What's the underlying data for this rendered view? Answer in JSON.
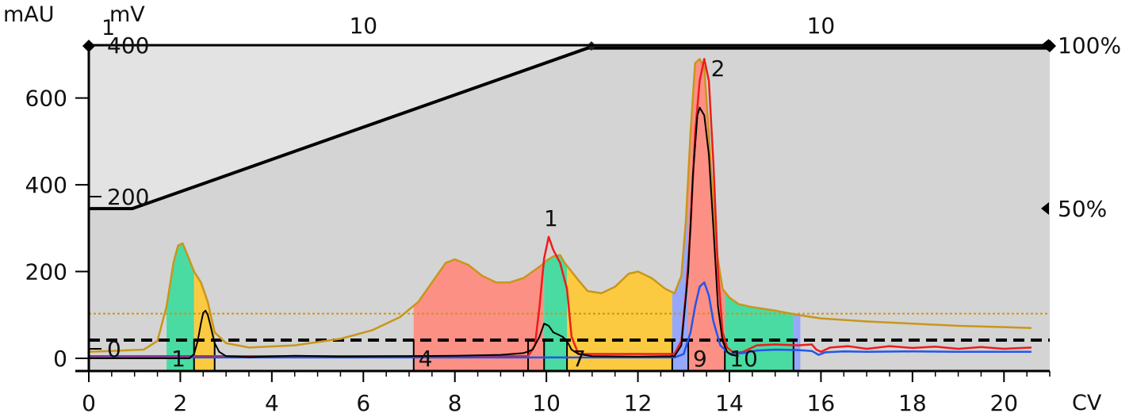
{
  "chart_data": {
    "type": "line",
    "title": "",
    "colors": {
      "plot_bg": "#d4d4d4",
      "gradient_fill": "#e3e3e3",
      "fraction_green": "#3ddb9d",
      "fraction_yellow": "#ffc933",
      "fraction_red": "#ff8a7d",
      "fraction_blue": "#8fa4ff",
      "gold_trace": "#c9961a",
      "red_trace": "#ee1c1c",
      "blue_trace": "#2255ee",
      "black_trace": "#000000"
    },
    "axes": {
      "x": {
        "label": "CV",
        "range": [
          0,
          21
        ],
        "ticks": [
          "0",
          "2",
          "4",
          "6",
          "8",
          "10",
          "12",
          "14",
          "16",
          "18",
          "20"
        ]
      },
      "y_left": {
        "label": "mAU",
        "range": [
          -30,
          730
        ],
        "ticks": [
          "0",
          "200",
          "400",
          "600"
        ]
      },
      "y_left2": {
        "label": "mV",
        "ticks": [
          "0",
          "200",
          "400"
        ]
      },
      "y_right": {
        "ticks": [
          "50%",
          "100%"
        ]
      },
      "grid": false
    },
    "top_labels": {
      "first": "1",
      "segments": [
        {
          "text": "10",
          "x": 6
        },
        {
          "text": "10",
          "x": 16
        }
      ]
    },
    "gradient": [
      [
        0,
        345
      ],
      [
        0.95,
        345
      ],
      [
        10.9,
        715
      ],
      [
        21,
        715
      ]
    ],
    "thresholds": [
      {
        "name": "gold dotted",
        "y": 103,
        "style": "dotted"
      },
      {
        "name": "black dashed",
        "y": 42,
        "style": "dashed"
      }
    ],
    "fractions": [
      {
        "label": "1",
        "start": 1.7,
        "end": 2.3,
        "color": "green"
      },
      {
        "label": "",
        "start": 2.3,
        "end": 2.75,
        "color": "yellow"
      },
      {
        "label": "4",
        "start": 7.1,
        "end": 9.6,
        "color": "red"
      },
      {
        "label": "",
        "start": 9.6,
        "end": 9.95,
        "color": "red"
      },
      {
        "label": "",
        "start": 9.95,
        "end": 10.45,
        "color": "green"
      },
      {
        "label": "7",
        "start": 10.45,
        "end": 12.75,
        "color": "yellow"
      },
      {
        "label": "",
        "start": 12.75,
        "end": 13.1,
        "color": "blue"
      },
      {
        "label": "9",
        "start": 13.1,
        "end": 13.9,
        "color": "red"
      },
      {
        "label": "10",
        "start": 13.9,
        "end": 15.4,
        "color": "green"
      },
      {
        "label": "",
        "start": 15.4,
        "end": 15.55,
        "color": "blue"
      }
    ],
    "peak_labels": [
      {
        "text": "1",
        "x": 10.1,
        "y": 320
      },
      {
        "text": "2",
        "x": 13.75,
        "y": 665
      }
    ],
    "series": [
      {
        "color": "gold",
        "x": [
          0,
          1.2,
          1.5,
          1.7,
          1.85,
          1.95,
          2.05,
          2.15,
          2.3,
          2.45,
          2.6,
          2.75,
          3,
          3.5,
          4.5,
          5.5,
          6.2,
          6.8,
          7.2,
          7.5,
          7.8,
          8,
          8.3,
          8.6,
          8.9,
          9.2,
          9.5,
          9.7,
          9.9,
          10,
          10.15,
          10.3,
          10.4,
          10.55,
          10.7,
          10.9,
          11.2,
          11.5,
          11.8,
          12,
          12.3,
          12.6,
          12.8,
          12.95,
          13.05,
          13.15,
          13.25,
          13.35,
          13.45,
          13.55,
          13.7,
          13.85,
          14,
          14.2,
          14.5,
          15,
          15.5,
          16,
          17,
          18,
          19,
          20,
          20.6
        ],
        "y": [
          15,
          20,
          40,
          120,
          220,
          260,
          265,
          240,
          200,
          175,
          130,
          60,
          35,
          25,
          30,
          45,
          65,
          95,
          130,
          175,
          220,
          228,
          215,
          190,
          175,
          175,
          185,
          200,
          215,
          225,
          235,
          238,
          220,
          200,
          180,
          155,
          150,
          165,
          195,
          200,
          185,
          160,
          150,
          190,
          320,
          520,
          680,
          690,
          670,
          520,
          260,
          160,
          140,
          125,
          118,
          110,
          100,
          92,
          85,
          80,
          75,
          72,
          70
        ]
      },
      {
        "color": "red",
        "x": [
          0,
          9.6,
          9.75,
          9.85,
          9.95,
          10.05,
          10.15,
          10.3,
          10.45,
          10.55,
          10.7,
          12.8,
          12.95,
          13.05,
          13.15,
          13.25,
          13.35,
          13.45,
          13.55,
          13.65,
          13.75,
          13.85,
          13.95,
          14.1,
          14.3,
          14.6,
          15,
          15.5,
          15.8,
          15.9,
          16,
          16.2,
          16.6,
          17,
          17.5,
          18,
          18.5,
          19,
          19.5,
          20,
          20.6
        ],
        "y": [
          5,
          5,
          30,
          120,
          230,
          280,
          250,
          220,
          160,
          50,
          10,
          10,
          40,
          150,
          300,
          520,
          640,
          690,
          640,
          450,
          200,
          60,
          25,
          12,
          15,
          30,
          32,
          30,
          32,
          20,
          15,
          25,
          28,
          22,
          28,
          24,
          27,
          22,
          26,
          22,
          25
        ]
      },
      {
        "color": "blue",
        "x": [
          0,
          12.8,
          13.0,
          13.15,
          13.25,
          13.35,
          13.45,
          13.55,
          13.65,
          13.8,
          14.0,
          14.3,
          14.6,
          15,
          15.5,
          15.8,
          15.95,
          16.1,
          16.5,
          17,
          18,
          19,
          20,
          20.6
        ],
        "y": [
          2,
          2,
          10,
          60,
          120,
          165,
          175,
          145,
          85,
          30,
          10,
          12,
          18,
          20,
          19,
          17,
          8,
          14,
          16,
          15,
          16,
          15,
          15,
          15
        ]
      },
      {
        "color": "black",
        "x": [
          0,
          2.2,
          2.3,
          2.38,
          2.45,
          2.5,
          2.55,
          2.6,
          2.65,
          2.75,
          2.85,
          3,
          3.5,
          4.5,
          5.5,
          7,
          8,
          9,
          9.5,
          9.7,
          9.85,
          9.95,
          10.05,
          10.15,
          10.25,
          10.35,
          10.45,
          10.55,
          10.7,
          11,
          12,
          12.8,
          12.95,
          13.1,
          13.2,
          13.3,
          13.35,
          13.45,
          13.55,
          13.65,
          13.75,
          13.85,
          13.95,
          14.05,
          14.2
        ],
        "y": [
          0,
          0,
          10,
          40,
          80,
          105,
          110,
          100,
          80,
          35,
          15,
          5,
          3,
          6,
          4,
          5,
          6,
          8,
          12,
          20,
          50,
          80,
          75,
          60,
          55,
          50,
          40,
          20,
          10,
          5,
          4,
          5,
          30,
          200,
          420,
          560,
          578,
          560,
          470,
          300,
          120,
          40,
          15,
          8,
          5
        ]
      }
    ]
  }
}
